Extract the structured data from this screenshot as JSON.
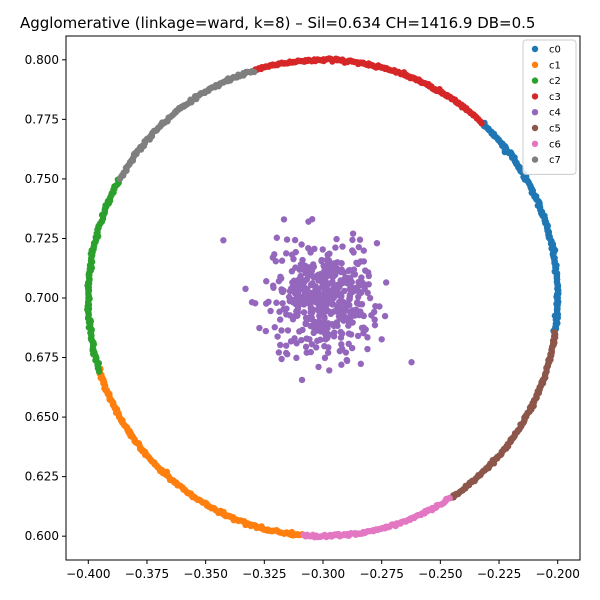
{
  "chart_data": {
    "type": "scatter",
    "title": "Agglomerative (linkage=ward, k=8) – Sil=0.634  CH=1416.9  DB=0.5",
    "xlabel": "",
    "ylabel": "",
    "xlim": [
      -0.4095,
      -0.1905
    ],
    "ylim": [
      0.59,
      0.81
    ],
    "x_ticks": [
      -0.4,
      -0.375,
      -0.35,
      -0.325,
      -0.3,
      -0.275,
      -0.25,
      -0.225,
      -0.2
    ],
    "x_tick_labels": [
      "−0.400",
      "−0.375",
      "−0.350",
      "−0.325",
      "−0.300",
      "−0.275",
      "−0.250",
      "−0.225",
      "−0.200"
    ],
    "y_ticks": [
      0.6,
      0.625,
      0.65,
      0.675,
      0.7,
      0.725,
      0.75,
      0.775,
      0.8
    ],
    "y_tick_labels": [
      "0.600",
      "0.625",
      "0.650",
      "0.675",
      "0.700",
      "0.725",
      "0.750",
      "0.775",
      "0.800"
    ],
    "grid": false,
    "legend_position": "top-right",
    "ring": {
      "center": [
        -0.3,
        0.7
      ],
      "radius": 0.1
    },
    "series": [
      {
        "name": "c0",
        "color": "#1f77b4",
        "angle_range_deg": [
          -8,
          47
        ]
      },
      {
        "name": "c1",
        "color": "#ff7f0e",
        "angle_range_deg": [
          197,
          265
        ]
      },
      {
        "name": "c2",
        "color": "#2ca02c",
        "angle_range_deg": [
          150,
          198
        ]
      },
      {
        "name": "c3",
        "color": "#d62728",
        "angle_range_deg": [
          47,
          107
        ]
      },
      {
        "name": "c4",
        "color": "#9467bd",
        "center": [
          -0.3,
          0.7
        ],
        "std": [
          0.011,
          0.011
        ],
        "count": 500
      },
      {
        "name": "c5",
        "color": "#8c564b",
        "angle_range_deg": [
          303,
          352
        ]
      },
      {
        "name": "c6",
        "color": "#e377c2",
        "angle_range_deg": [
          265,
          303
        ]
      },
      {
        "name": "c7",
        "color": "#7f7f7f",
        "angle_range_deg": [
          107,
          150
        ]
      }
    ],
    "ring_points_per_degree": 2.8
  }
}
